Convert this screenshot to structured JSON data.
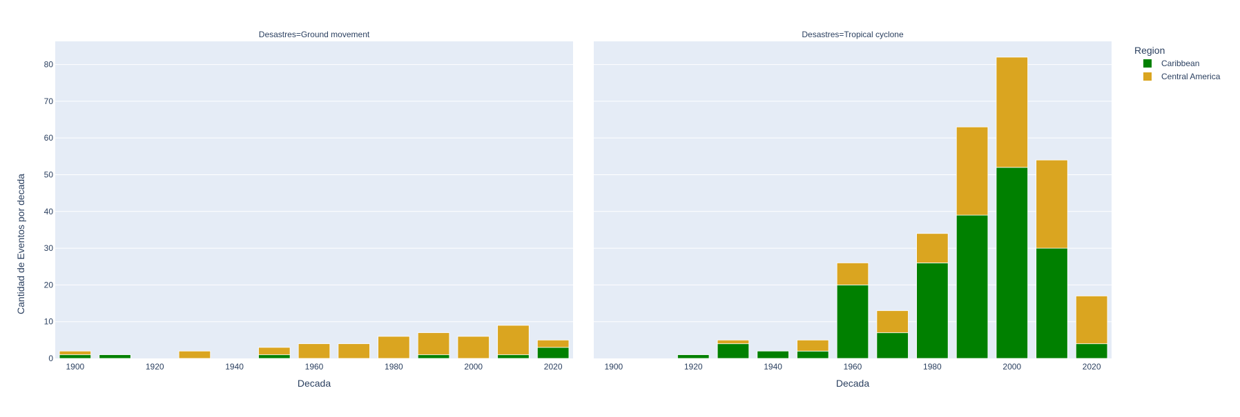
{
  "chart_data": {
    "type": "bar",
    "barmode": "stack",
    "ylabel": "Cantidad de Eventos por decada",
    "ylim": [
      0,
      86.3
    ],
    "y_ticks": [
      0,
      10,
      20,
      30,
      40,
      50,
      60,
      70,
      80
    ],
    "x_ticks": [
      1900,
      1920,
      1940,
      1960,
      1980,
      2000,
      2020
    ],
    "x": [
      1900,
      1910,
      1920,
      1930,
      1940,
      1950,
      1960,
      1970,
      1980,
      1990,
      2000,
      2010,
      2020
    ],
    "legend": {
      "title": "Region",
      "position": "top-right"
    },
    "grid": true,
    "colors": {
      "Caribbean": "#008000",
      "Central America": "#daa520",
      "plot_bg": "#e5ecf6"
    },
    "facets": [
      {
        "title": "Desastres=Ground movement",
        "xlabel": "Decada",
        "series": [
          {
            "name": "Caribbean",
            "values": [
              1,
              1,
              0,
              0,
              0,
              1,
              0,
              0,
              0,
              1,
              0,
              1,
              3
            ]
          },
          {
            "name": "Central America",
            "values": [
              1,
              0,
              0,
              2,
              0,
              2,
              4,
              4,
              6,
              6,
              6,
              8,
              2
            ]
          }
        ]
      },
      {
        "title": "Desastres=Tropical cyclone",
        "xlabel": "Decada",
        "series": [
          {
            "name": "Caribbean",
            "values": [
              0,
              0,
              1,
              4,
              2,
              2,
              20,
              7,
              26,
              39,
              52,
              30,
              4
            ]
          },
          {
            "name": "Central America",
            "values": [
              0,
              0,
              0,
              1,
              0,
              3,
              6,
              6,
              8,
              24,
              30,
              24,
              13
            ]
          }
        ]
      }
    ]
  }
}
